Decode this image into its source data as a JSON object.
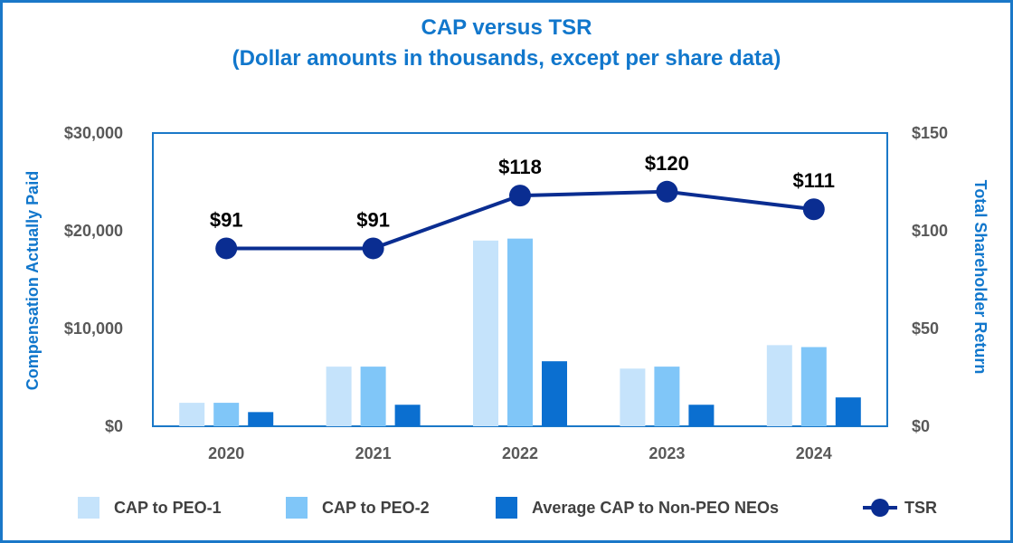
{
  "chart_data": {
    "type": "bar",
    "title": "CAP versus TSR",
    "subtitle": "(Dollar amounts in thousands, except per share data)",
    "categories": [
      "2020",
      "2021",
      "2022",
      "2023",
      "2024"
    ],
    "ylabel": "Compensation Actually Paid",
    "y2label": "Total Shareholder Return",
    "ylim": [
      0,
      30000
    ],
    "y2lim": [
      0,
      150
    ],
    "yticks": [
      0,
      10000,
      20000,
      30000
    ],
    "ytick_labels": [
      "$0",
      "$10,000",
      "$20,000",
      "$30,000"
    ],
    "y2ticks": [
      0,
      50,
      100,
      150
    ],
    "y2tick_labels": [
      "$0",
      "$50",
      "$100",
      "$150"
    ],
    "series": [
      {
        "name": "CAP to PEO-1",
        "type": "bar",
        "color": "#c5e3fb",
        "values": [
          2400,
          6100,
          19000,
          5900,
          8300
        ]
      },
      {
        "name": "CAP to PEO-2",
        "type": "bar",
        "color": "#80c6f8",
        "values": [
          2400,
          6100,
          19200,
          6100,
          8100
        ]
      },
      {
        "name": "Average CAP to Non-PEO NEOs",
        "type": "bar",
        "color": "#0b6fd0",
        "values": [
          1450,
          2200,
          6650,
          2200,
          2950
        ]
      },
      {
        "name": "TSR",
        "type": "line",
        "axis": "y2",
        "color": "#0a2d91",
        "values": [
          91,
          91,
          118,
          120,
          111
        ],
        "labels": [
          "$91",
          "$91",
          "$118",
          "$120",
          "$111"
        ]
      }
    ],
    "grid": false,
    "legend_position": "bottom"
  }
}
